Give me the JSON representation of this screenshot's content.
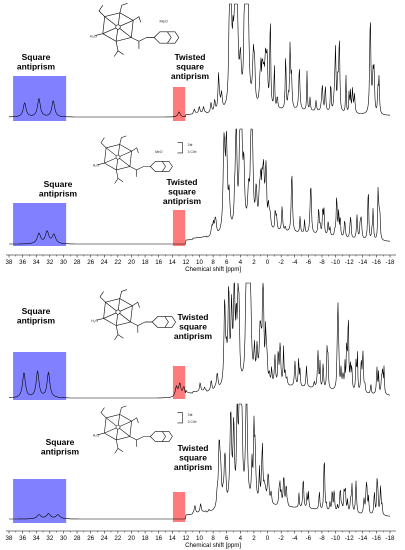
{
  "panels": [
    {
      "spectra": [
        {
          "labels": {
            "left": [
              "Square",
              "antiprism"
            ],
            "right": [
              "Twisted",
              "square",
              "antiprism"
            ]
          }
        },
        {
          "labels": {
            "left": [
              "Square",
              "antiprism"
            ],
            "right": [
              "Twisted",
              "square",
              "antiprism"
            ]
          }
        }
      ],
      "axis": {
        "ticks": [
          "38",
          "36",
          "34",
          "32",
          "30",
          "28",
          "26",
          "24",
          "22",
          "20",
          "18",
          "16",
          "14",
          "12",
          "10",
          "8",
          "6",
          "4",
          "2",
          "0",
          "-2",
          "-4",
          "-6",
          "-8",
          "-10",
          "-12",
          "-14",
          "-16",
          "-18"
        ],
        "title": "Chemical shift [ppm]"
      }
    },
    {
      "spectra": [
        {
          "labels": {
            "left": [
              "Square",
              "antiprism"
            ],
            "right": [
              "Twisted",
              "square",
              "antiprism"
            ]
          }
        },
        {
          "labels": {
            "left": [
              "Square",
              "antiprism"
            ],
            "right": [
              "Twisted",
              "square",
              "antiprism"
            ]
          }
        }
      ],
      "axis": {
        "ticks": [
          "38",
          "36",
          "34",
          "32",
          "30",
          "28",
          "26",
          "24",
          "22",
          "20",
          "18",
          "16",
          "14",
          "12",
          "10",
          "8",
          "6",
          "4",
          "2",
          "0",
          "-2",
          "-4",
          "-6",
          "-8",
          "-10",
          "-12",
          "-14",
          "-16",
          "-18"
        ],
        "title": "Chemical shift [ppm]"
      }
    }
  ],
  "structure_text": {
    "meo": "MeO",
    "h2o": "H₂O",
    "charge": "3⊕",
    "counter": "3 Cl⊖"
  },
  "colors": {
    "square_region": "#6b6bff",
    "twisted_region": "#ff5a5a",
    "trace": "#000000"
  },
  "icons": [
    "complex-structure-icon"
  ]
}
